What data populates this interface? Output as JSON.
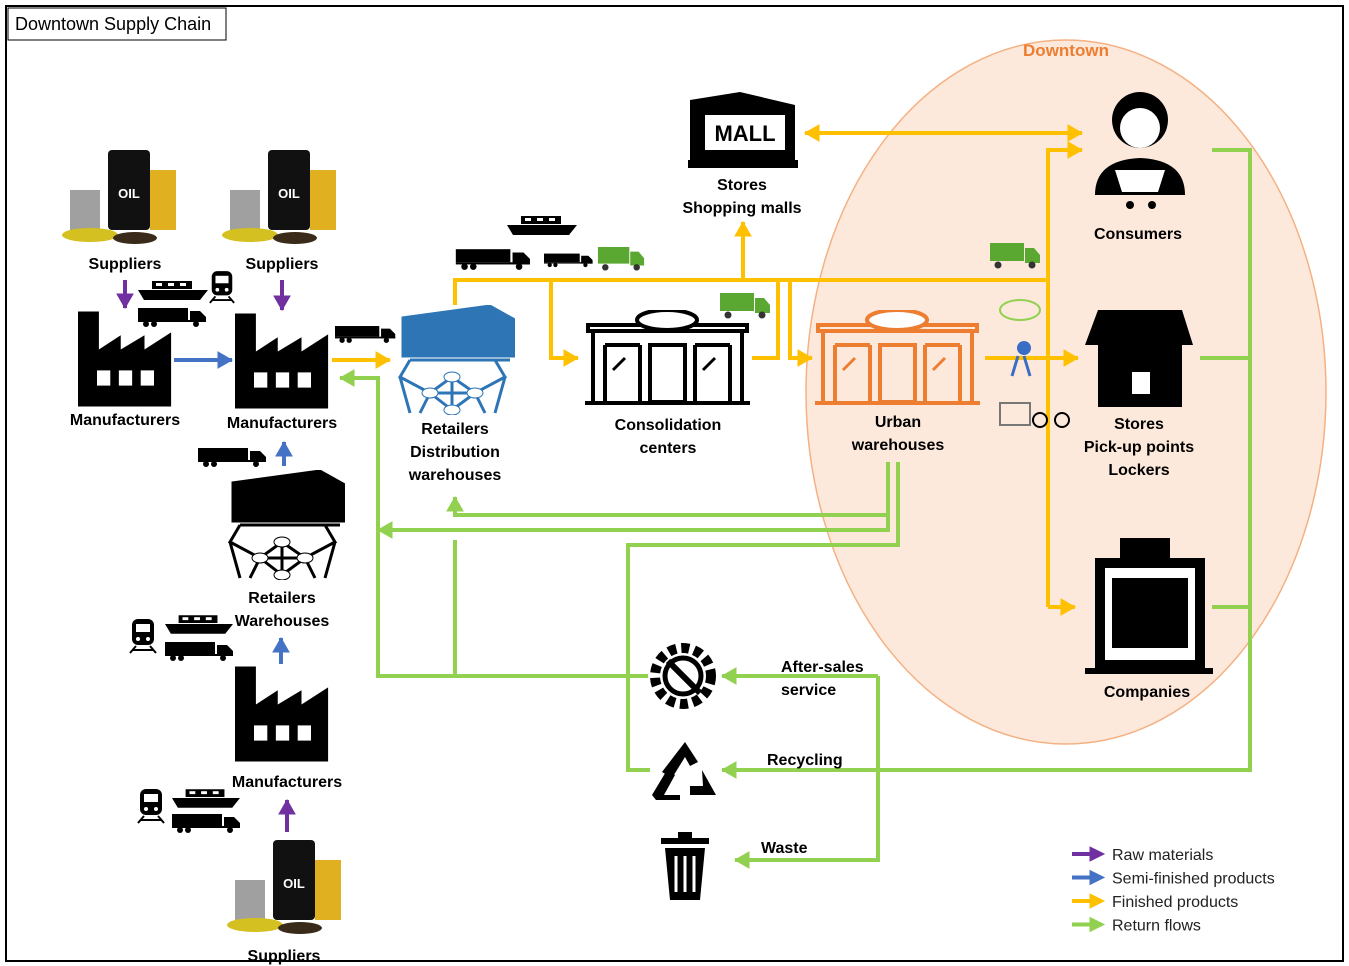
{
  "title": "Downtown Supply Chain",
  "zone": "Downtown",
  "icon_text": {
    "mall": "MALL",
    "oil": "OIL"
  },
  "nodes": [
    {
      "label": [
        "Suppliers"
      ]
    },
    {
      "label": [
        "Suppliers"
      ]
    },
    {
      "label": [
        "Manufacturers"
      ]
    },
    {
      "label": [
        "Manufacturers"
      ]
    },
    {
      "label": [
        "Retailers",
        "Distribution",
        "warehouses"
      ]
    },
    {
      "label": [
        "Retailers",
        "Warehouses"
      ]
    },
    {
      "label": [
        "Manufacturers"
      ]
    },
    {
      "label": [
        "Suppliers"
      ]
    },
    {
      "label": [
        "Stores",
        "Shopping malls"
      ]
    },
    {
      "label": [
        "Consolidation",
        "centers"
      ]
    },
    {
      "label": [
        "Urban",
        "warehouses"
      ]
    },
    {
      "label": [
        "Consumers"
      ]
    },
    {
      "label": [
        "Stores",
        "Pick-up points",
        "Lockers"
      ]
    },
    {
      "label": [
        "Companies"
      ]
    }
  ],
  "flows": [
    {
      "label": [
        "After-sales",
        "service"
      ]
    },
    {
      "label": [
        "Recycling"
      ]
    },
    {
      "label": [
        "Waste"
      ]
    }
  ],
  "legend": [
    {
      "label": "Raw materials",
      "color": "#7030a0"
    },
    {
      "label": "Semi-finished products",
      "color": "#4472c4"
    },
    {
      "label": "Finished products",
      "color": "#ffc000"
    },
    {
      "label": "Return flows",
      "color": "#92d050"
    }
  ]
}
